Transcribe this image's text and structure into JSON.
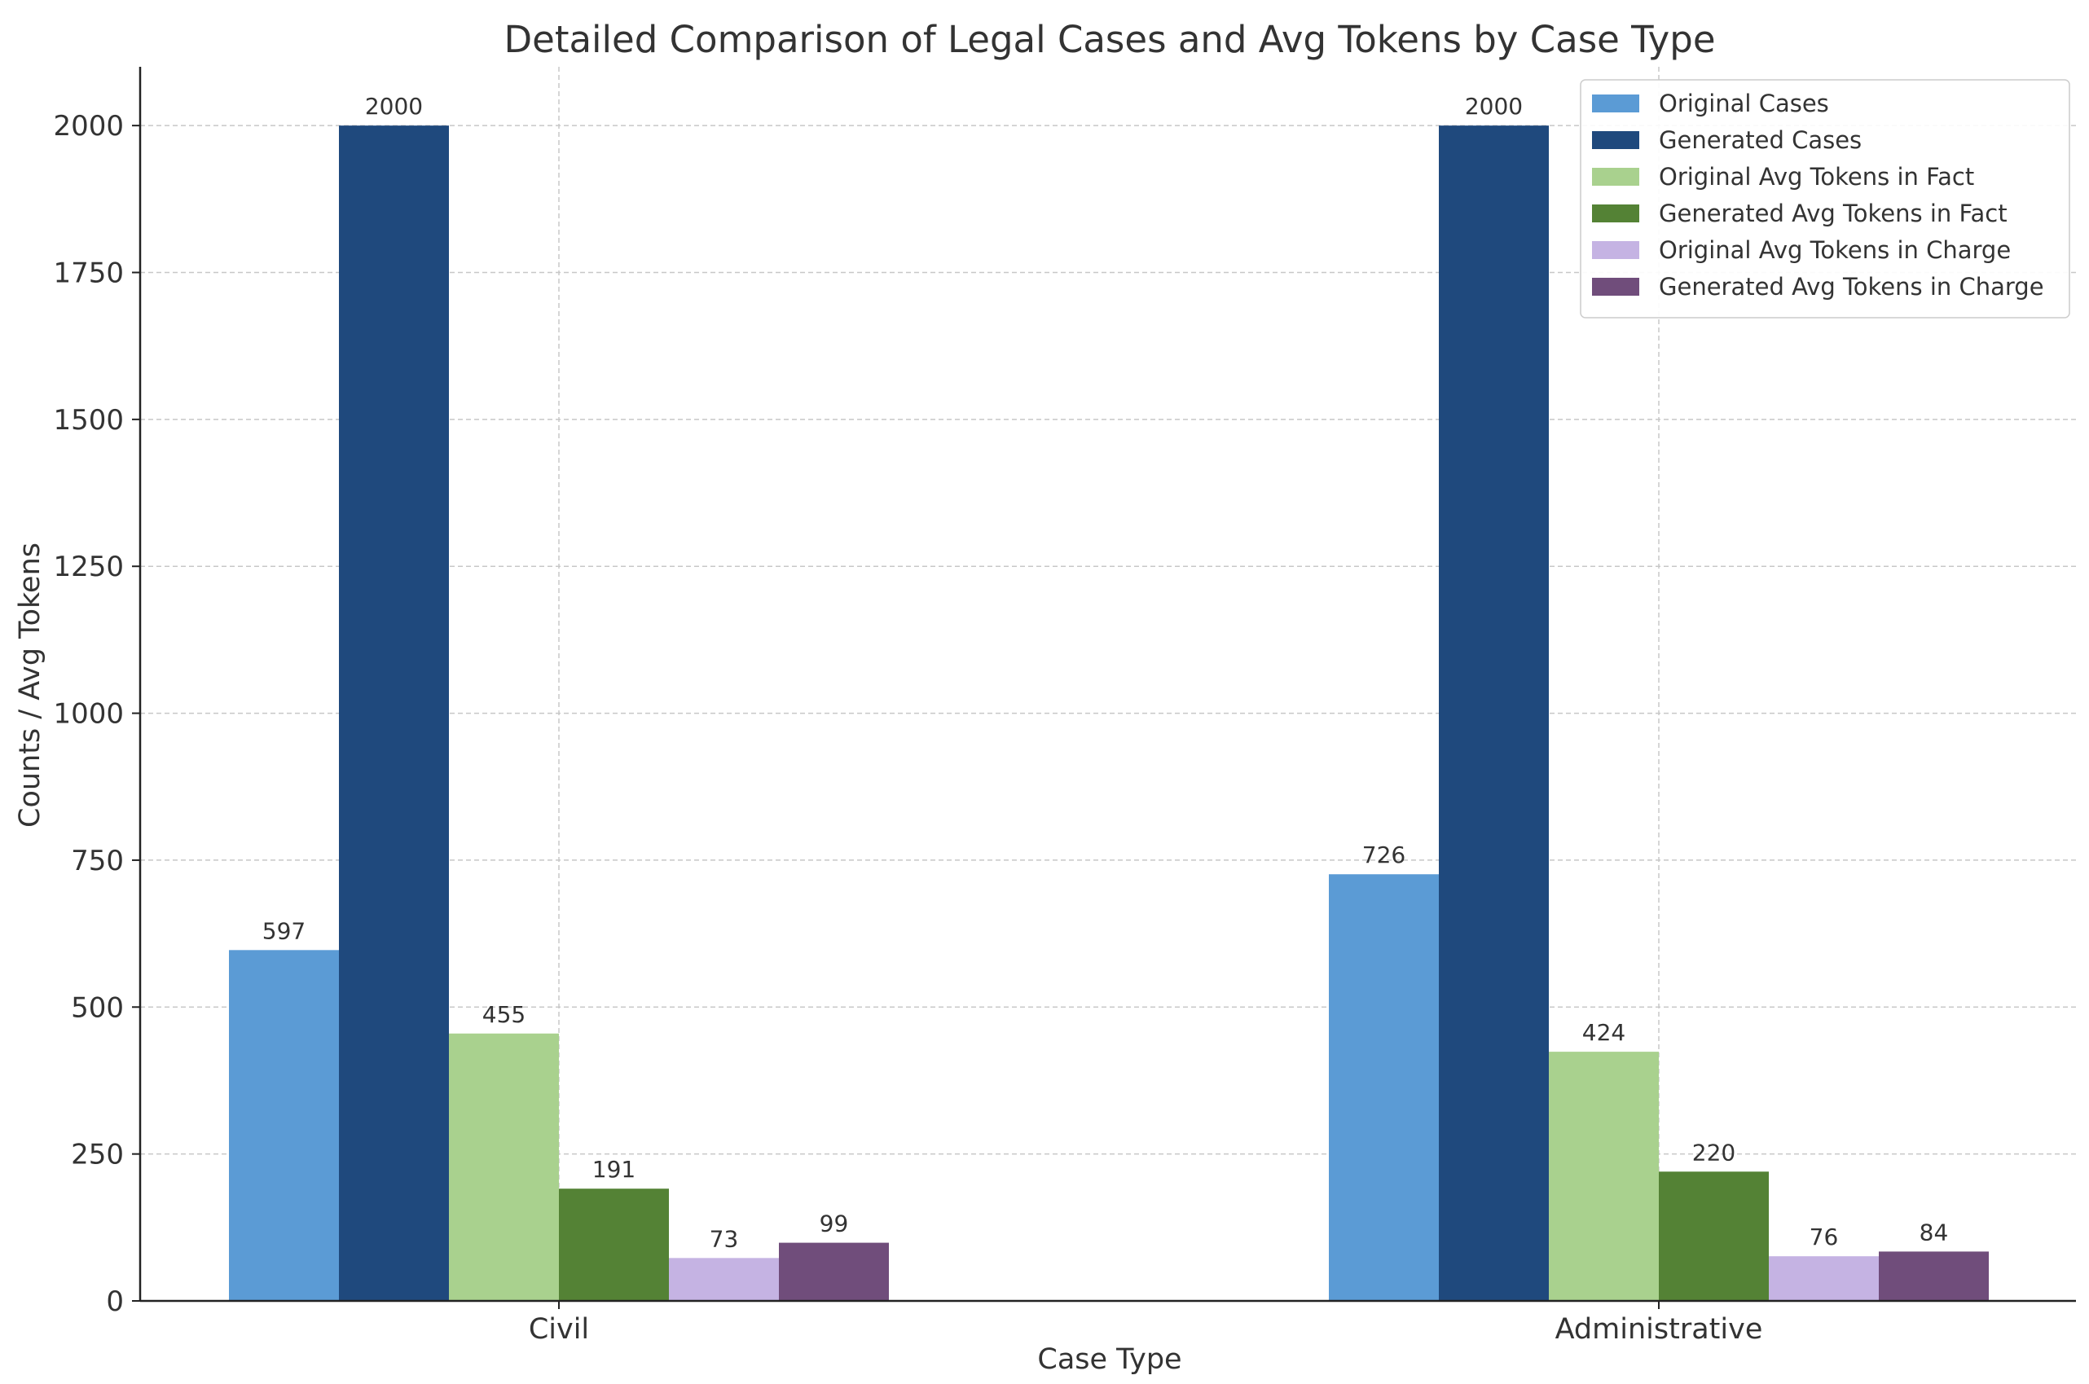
{
  "chart_data": {
    "type": "bar",
    "title": "Detailed Comparison of Legal Cases and Avg Tokens by Case Type",
    "xlabel": "Case Type",
    "ylabel": "Counts / Avg Tokens",
    "ylim": [
      0,
      2100
    ],
    "yticks": [
      0,
      250,
      500,
      750,
      1000,
      1250,
      1500,
      1750,
      2000
    ],
    "grid": true,
    "legend_position": "top-right",
    "categories": [
      "Civil",
      "Administrative"
    ],
    "series": [
      {
        "name": "Original Cases",
        "color": "#5b9bd5",
        "values": [
          597,
          726
        ]
      },
      {
        "name": "Generated Cases",
        "color": "#1f497d",
        "values": [
          2000,
          2000
        ]
      },
      {
        "name": "Original Avg Tokens in Fact",
        "color": "#a9d18e",
        "values": [
          455,
          424
        ]
      },
      {
        "name": "Generated Avg Tokens in Fact",
        "color": "#548235",
        "values": [
          191,
          220
        ]
      },
      {
        "name": "Original Avg Tokens in Charge",
        "color": "#c5b3e3",
        "values": [
          73,
          76
        ]
      },
      {
        "name": "Generated Avg Tokens in Charge",
        "color": "#704d7b",
        "values": [
          99,
          84
        ]
      }
    ]
  }
}
